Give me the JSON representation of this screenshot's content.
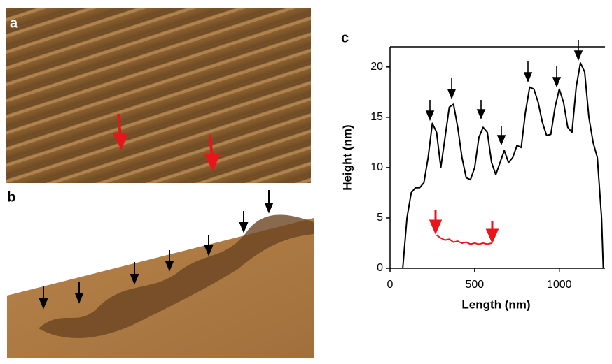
{
  "panels": {
    "a": "a",
    "b": "b",
    "c": "c"
  },
  "chart_data": {
    "type": "line",
    "xlabel": "Length (nm)",
    "ylabel": "Height (nm)",
    "xlim": [
      0,
      1270
    ],
    "ylim": [
      0,
      22
    ],
    "xticks": [
      0,
      500,
      1000
    ],
    "yticks": [
      0,
      5,
      10,
      15,
      20
    ],
    "x": [
      75,
      100,
      125,
      150,
      175,
      200,
      225,
      250,
      275,
      300,
      325,
      350,
      375,
      400,
      425,
      450,
      475,
      500,
      525,
      550,
      575,
      600,
      625,
      650,
      675,
      700,
      725,
      750,
      775,
      800,
      825,
      850,
      875,
      900,
      925,
      950,
      975,
      1000,
      1025,
      1050,
      1075,
      1100,
      1125,
      1150,
      1175,
      1200,
      1225,
      1250,
      1260
    ],
    "series": [
      {
        "color": "#000000",
        "values": [
          0,
          5,
          7.5,
          8,
          8,
          8.5,
          11,
          14.4,
          13.5,
          10,
          13,
          16,
          16.3,
          14,
          11,
          9,
          8.8,
          10,
          13,
          14,
          13.5,
          10.5,
          9.3,
          10.5,
          11.7,
          10.5,
          11,
          12.2,
          12,
          15.5,
          18,
          17.8,
          16.5,
          14.5,
          13.2,
          13.3,
          16,
          17.8,
          16.5,
          14,
          13.5,
          18,
          20.4,
          19.5,
          15,
          12.5,
          11,
          5,
          0
        ]
      },
      {
        "color": "#e8161b",
        "values": [
          null,
          null,
          null,
          null,
          null,
          null,
          null,
          null,
          3.3,
          3,
          2.8,
          2.9,
          2.6,
          2.7,
          2.5,
          2.6,
          2.4,
          2.5,
          2.4,
          2.5,
          2.4,
          2.5,
          null,
          null,
          null,
          null,
          null,
          null,
          null,
          null,
          null,
          null,
          null,
          null,
          null,
          null,
          null,
          null,
          null,
          null,
          null,
          null,
          null,
          null,
          null,
          null,
          null,
          null,
          null
        ]
      }
    ]
  }
}
